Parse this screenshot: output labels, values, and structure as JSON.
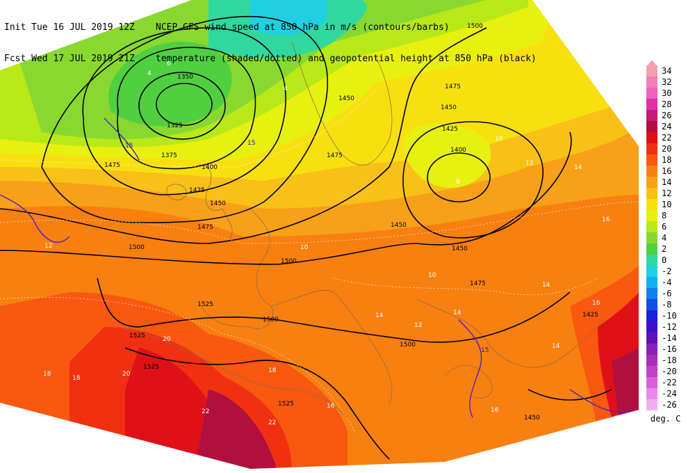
{
  "header": {
    "init_label": "Init",
    "init_time": "Tue 16 JUL 2019 12Z",
    "fcst_label": "Fcst",
    "fcst_time": "Wed 17 JUL 2019 21Z",
    "title_line1": "NCEP GFS wind speed at 850 hPa in m/s (contours/barbs)",
    "title_line2": "temperature (shaded/dotted) and geopotential height at 850 hPa (black)"
  },
  "legend": {
    "units": "deg. C",
    "levels": [
      {
        "value": "34",
        "color": "#f0a0b0"
      },
      {
        "value": "32",
        "color": "#f080b8"
      },
      {
        "value": "30",
        "color": "#f060c0"
      },
      {
        "value": "28",
        "color": "#e030a8"
      },
      {
        "value": "26",
        "color": "#c81878"
      },
      {
        "value": "24",
        "color": "#b01040"
      },
      {
        "value": "22",
        "color": "#e01018"
      },
      {
        "value": "20",
        "color": "#f03010"
      },
      {
        "value": "18",
        "color": "#f85810"
      },
      {
        "value": "16",
        "color": "#f88010"
      },
      {
        "value": "14",
        "color": "#f8a018"
      },
      {
        "value": "12",
        "color": "#f8c018"
      },
      {
        "value": "10",
        "color": "#f8e010"
      },
      {
        "value": "8",
        "color": "#e8f010"
      },
      {
        "value": "6",
        "color": "#b8e818"
      },
      {
        "value": "4",
        "color": "#88d830"
      },
      {
        "value": "2",
        "color": "#50d040"
      },
      {
        "value": "0",
        "color": "#30d8a0"
      },
      {
        "value": "-2",
        "color": "#20d0e0"
      },
      {
        "value": "-4",
        "color": "#10b0f0"
      },
      {
        "value": "-6",
        "color": "#1080f0"
      },
      {
        "value": "-8",
        "color": "#1050e8"
      },
      {
        "value": "-10",
        "color": "#2020d8"
      },
      {
        "value": "-12",
        "color": "#4010c8"
      },
      {
        "value": "-14",
        "color": "#6010b8"
      },
      {
        "value": "-16",
        "color": "#8820b8"
      },
      {
        "value": "-18",
        "color": "#a830b8"
      },
      {
        "value": "-20",
        "color": "#c040c8"
      },
      {
        "value": "-22",
        "color": "#d860d8"
      },
      {
        "value": "-24",
        "color": "#e888e8"
      },
      {
        "value": "-26",
        "color": "#f0b0f0"
      }
    ]
  },
  "map": {
    "height_labels": [
      "1500",
      "1475",
      "1450",
      "1425",
      "1400",
      "1375",
      "1350",
      "1325",
      "1475",
      "1450",
      "1425",
      "1400",
      "1500",
      "1475",
      "1450",
      "1500",
      "1525",
      "1500",
      "1525",
      "1525",
      "1525",
      "1500",
      "1475",
      "1425",
      "1450",
      "1450",
      "1450",
      "1475"
    ],
    "temp_labels": [
      "6",
      "4",
      "4",
      "10",
      "8",
      "12",
      "12",
      "10",
      "14",
      "16",
      "14",
      "16",
      "18",
      "18",
      "20",
      "20",
      "22",
      "22",
      "16",
      "18",
      "14",
      "14",
      "16",
      "14",
      "12",
      "10"
    ],
    "wind_labels": [
      "15",
      "15",
      "15"
    ]
  }
}
